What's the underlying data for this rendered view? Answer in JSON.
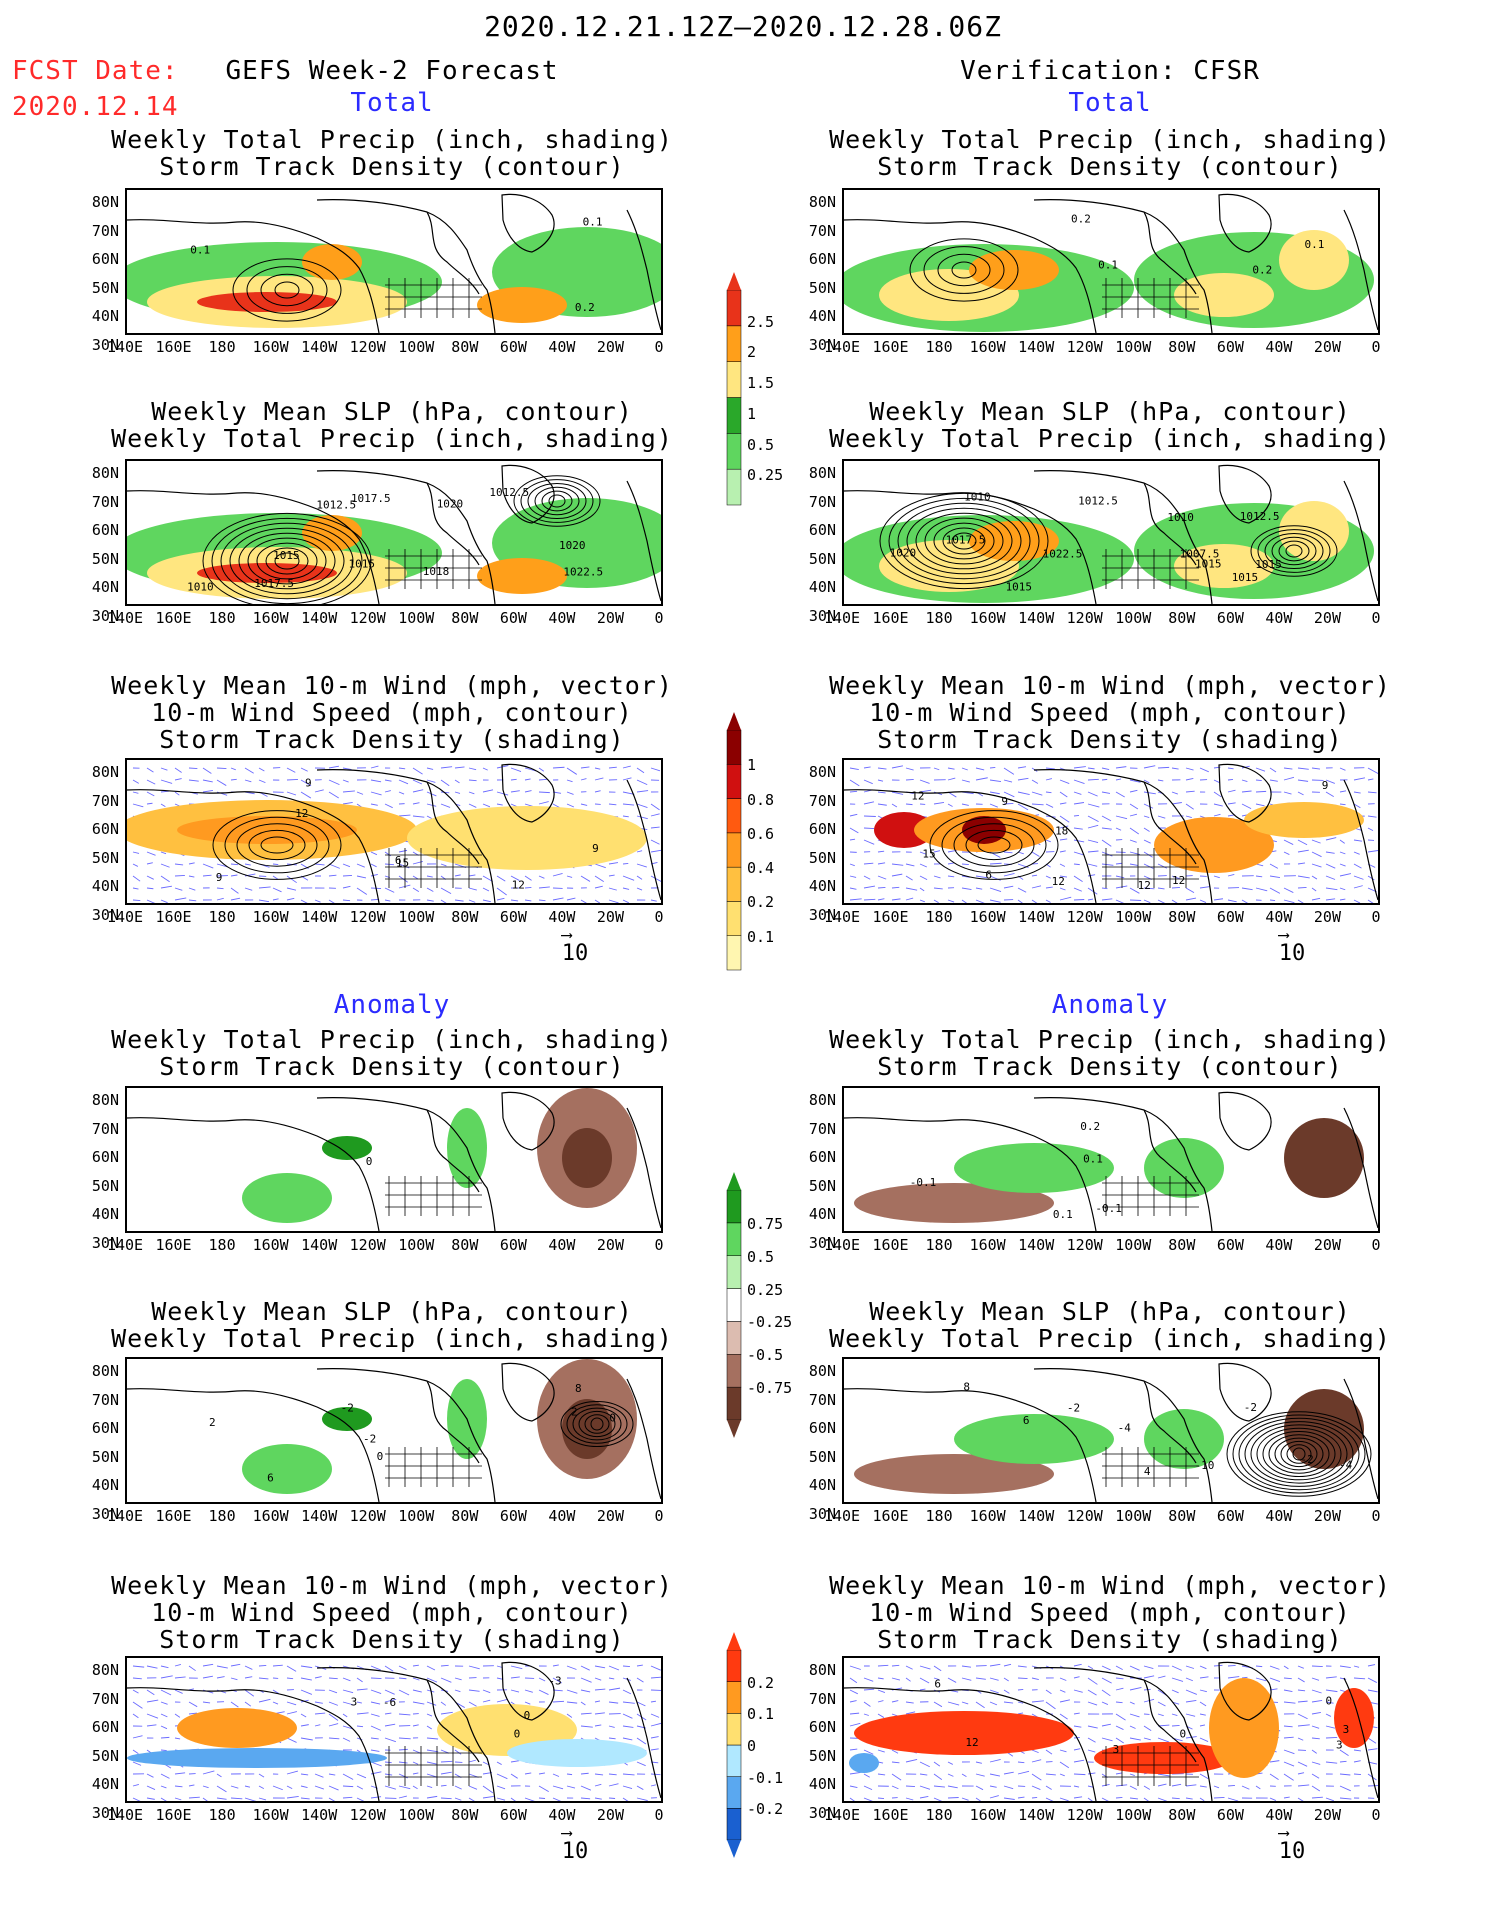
{
  "header": {
    "period": "2020.12.21.12Z—2020.12.28.06Z",
    "fcst_label": "FCST Date:",
    "fcst_date": "2020.12.14",
    "left_title": "GEFS Week-2 Forecast",
    "right_title": "Verification: CFSR",
    "total_left": "Total",
    "total_right": "Total",
    "anomaly_left": "Anomaly",
    "anomaly_right": "Anomaly"
  },
  "panel_titles": {
    "precip_storm": [
      "Weekly Total Precip (inch, shading)",
      "Storm Track Density (contour)"
    ],
    "slp_precip": [
      "Weekly Mean SLP (hPa, contour)",
      "Weekly Total Precip (inch, shading)"
    ],
    "wind_storm": [
      "Weekly Mean 10-m Wind (mph, vector)",
      "10-m Wind Speed (mph, contour)",
      "Storm Track Density (shading)"
    ]
  },
  "axes": {
    "lat_labels": [
      "80N",
      "70N",
      "60N",
      "50N",
      "40N",
      "30N"
    ],
    "lon_labels": [
      "140E",
      "160E",
      "180",
      "160W",
      "140W",
      "120W",
      "100W",
      "80W",
      "60W",
      "40W",
      "20W",
      "0"
    ]
  },
  "vector_key": "10",
  "colorbars": {
    "precip_total": [
      "0.25",
      "0.5",
      "1",
      "1.5",
      "2",
      "2.5"
    ],
    "storm_total": [
      "0.1",
      "0.2",
      "0.4",
      "0.6",
      "0.8",
      "1"
    ],
    "precip_anom": [
      "-0.75",
      "-0.5",
      "-0.25",
      "0.25",
      "0.5",
      "0.75"
    ],
    "storm_anom": [
      "-0.2",
      "-0.1",
      "0",
      "0.1",
      "0.2"
    ]
  },
  "colors": {
    "precip": [
      "#b8f0b0",
      "#5fd65f",
      "#2aa82a",
      "#ffe680",
      "#ff9f1a",
      "#e8331a"
    ],
    "storm": [
      "#fff6b0",
      "#ffe070",
      "#ffc040",
      "#ff9a20",
      "#ff5a10",
      "#d01010",
      "#8b0000"
    ],
    "anom_precip": [
      "#6b3a2a",
      "#a57060",
      "#dcbcb0",
      "#ffffff",
      "#b8f0b0",
      "#5fd65f",
      "#1f9a1f"
    ],
    "anom_storm": [
      "#1a60d0",
      "#5aa8f0",
      "#b0e8ff",
      "#ffe070",
      "#ff9a20",
      "#ff3a10"
    ],
    "label_red": "#ff2a2a",
    "label_blue": "#2b2bff"
  },
  "chart_data": [
    {
      "type": "heatmap",
      "panel": "GEFS total precip + storm track density",
      "contour_labels": [
        "0.2",
        "0.1",
        "0.1"
      ]
    },
    {
      "type": "heatmap",
      "panel": "GEFS total SLP + precip",
      "contour_labels": [
        "1015",
        "1017.5",
        "1017.5",
        "1015",
        "1010",
        "1012.5",
        "1020",
        "1020",
        "1022.5",
        "1018",
        "1012.5"
      ]
    },
    {
      "type": "heatmap",
      "panel": "GEFS total wind + storm track",
      "contour_labels": [
        "9",
        "12",
        "15",
        "9",
        "6",
        "12",
        "9"
      ]
    },
    {
      "type": "heatmap",
      "panel": "GEFS anomaly precip + storm",
      "contour_labels": [
        "0"
      ]
    },
    {
      "type": "heatmap",
      "panel": "GEFS anomaly SLP + precip",
      "contour_labels": [
        "0",
        "-2",
        "2",
        "2",
        "-2",
        "0",
        "6",
        "8"
      ]
    },
    {
      "type": "heatmap",
      "panel": "GEFS anomaly wind + storm",
      "contour_labels": [
        "-6",
        "0",
        "3",
        "0",
        "-3"
      ]
    },
    {
      "type": "heatmap",
      "panel": "CFSR total precip + storm",
      "contour_labels": [
        "0.1",
        "0.2",
        "0.1",
        "0.2"
      ]
    },
    {
      "type": "heatmap",
      "panel": "CFSR total SLP + precip",
      "contour_labels": [
        "1012.5",
        "1015",
        "1012.5",
        "1015",
        "1010",
        "1007.5",
        "1015",
        "1015",
        "1010",
        "1017.5",
        "1022.5",
        "1020"
      ]
    },
    {
      "type": "heatmap",
      "panel": "CFSR total wind + storm",
      "contour_labels": [
        "9",
        "15",
        "12",
        "12",
        "12",
        "6",
        "9",
        "12",
        "18"
      ]
    },
    {
      "type": "heatmap",
      "panel": "CFSR anomaly precip + storm",
      "contour_labels": [
        "-0.1",
        "0.1",
        "0.1",
        "0.2",
        "-0.1"
      ]
    },
    {
      "type": "heatmap",
      "panel": "CFSR anomaly SLP + precip",
      "contour_labels": [
        "-4",
        "-2",
        "-10",
        "6",
        "-4",
        "-2",
        "8",
        "4",
        "-2"
      ]
    },
    {
      "type": "heatmap",
      "panel": "CFSR anomaly wind + storm",
      "contour_labels": [
        "3",
        "6",
        "3",
        "12",
        "0",
        "3",
        "0"
      ]
    }
  ]
}
